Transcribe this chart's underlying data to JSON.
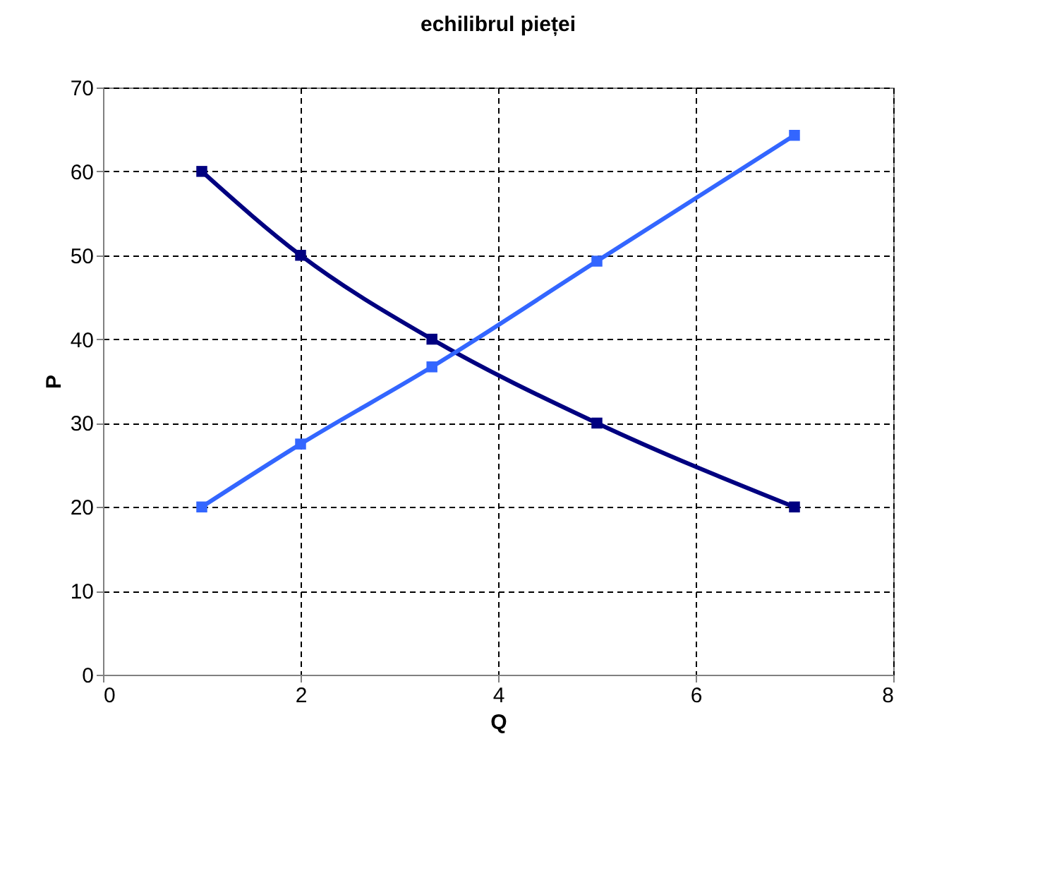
{
  "chart_data": {
    "type": "line",
    "title": "echilibrul pieței",
    "xlabel": "Q",
    "ylabel": "P",
    "xlim": [
      0,
      8
    ],
    "xticks": [
      0,
      2,
      4,
      6,
      8
    ],
    "ylim": [
      0,
      70
    ],
    "yticks": [
      0,
      10,
      20,
      30,
      40,
      50,
      60,
      70
    ],
    "grid": true,
    "marker": "square",
    "line_style": "solid",
    "series": [
      {
        "color": "#000080",
        "x": [
          1,
          2,
          3.33,
          5,
          7
        ],
        "values": [
          60,
          50,
          40,
          30,
          20
        ]
      },
      {
        "color": "#3366ff",
        "x": [
          1,
          2,
          3.33,
          5,
          7
        ],
        "values": [
          20,
          27.5,
          36.7,
          49.3,
          64.3
        ]
      }
    ]
  }
}
